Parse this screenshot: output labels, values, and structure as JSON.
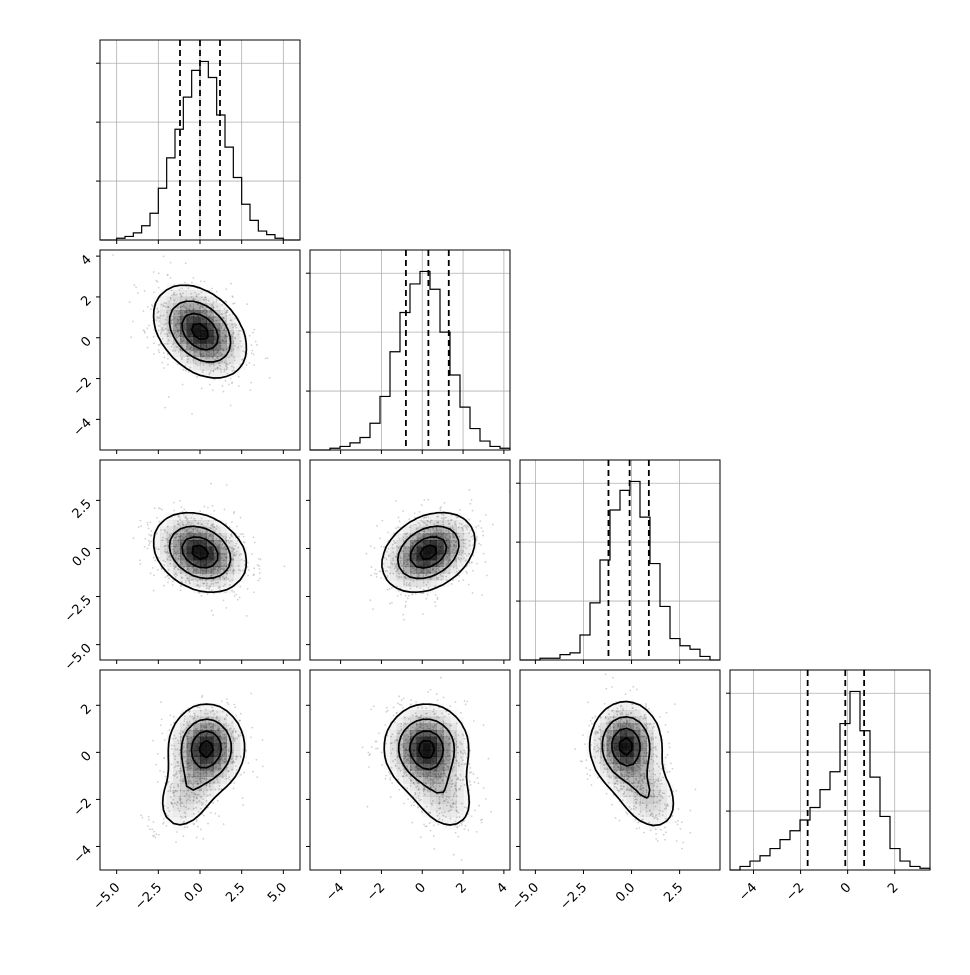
{
  "chart_data": {
    "type": "corner",
    "n_params": 4,
    "grid": true,
    "colors": {
      "line": "#000000",
      "grid": "#b0b0b0",
      "density": "#000000",
      "points": "#9a9a9a"
    },
    "params": [
      {
        "range": [
          -6,
          6
        ],
        "ticks": [
          -5.0,
          -2.5,
          0.0,
          2.5,
          5.0
        ],
        "tick_labels": [
          "−5.0",
          "−2.5",
          "0.0",
          "2.5",
          "5.0"
        ],
        "quantiles": [
          -1.2,
          0.0,
          1.2
        ],
        "hist": [
          0.0,
          0.0,
          0.01,
          0.02,
          0.04,
          0.08,
          0.15,
          0.29,
          0.46,
          0.62,
          0.8,
          0.95,
          1.0,
          0.91,
          0.7,
          0.52,
          0.35,
          0.2,
          0.11,
          0.05,
          0.03,
          0.01,
          0.0,
          0.0
        ]
      },
      {
        "range": [
          -5.5,
          4.3
        ],
        "ticks": [
          -4,
          -2,
          0,
          2,
          4
        ],
        "tick_labels": [
          "−4",
          "−2",
          "0",
          "2",
          "4"
        ],
        "quantiles": [
          -0.8,
          0.3,
          1.3
        ],
        "hist": [
          0.0,
          0.0,
          0.01,
          0.02,
          0.04,
          0.07,
          0.15,
          0.3,
          0.55,
          0.77,
          0.93,
          1.0,
          0.9,
          0.66,
          0.42,
          0.24,
          0.12,
          0.05,
          0.02,
          0.01
        ]
      },
      {
        "range": [
          -5.8,
          4.6
        ],
        "ticks": [
          -5.0,
          -2.5,
          0.0,
          2.5
        ],
        "tick_labels": [
          "−5.0",
          "−2.5",
          "0.0",
          "2.5"
        ],
        "quantiles": [
          -1.2,
          -0.1,
          0.9
        ],
        "hist": [
          0.0,
          0.0,
          0.01,
          0.01,
          0.03,
          0.04,
          0.14,
          0.32,
          0.56,
          0.84,
          0.95,
          1.0,
          0.8,
          0.54,
          0.3,
          0.12,
          0.08,
          0.06,
          0.02,
          0.0
        ]
      },
      {
        "range": [
          -5.0,
          3.5
        ],
        "ticks": [
          -4,
          -2,
          0,
          2
        ],
        "tick_labels": [
          "−4",
          "−2",
          "0",
          "2"
        ],
        "quantiles": [
          -1.7,
          -0.1,
          0.7
        ],
        "hist": [
          0.0,
          0.02,
          0.05,
          0.08,
          0.12,
          0.17,
          0.22,
          0.28,
          0.35,
          0.45,
          0.55,
          0.82,
          1.0,
          0.78,
          0.52,
          0.3,
          0.12,
          0.05,
          0.02,
          0.01
        ]
      }
    ],
    "y_ticks_2d": [
      null,
      {
        "ticks": [
          -4,
          -2,
          0,
          2,
          4
        ],
        "tick_labels": [
          "−4",
          "−2",
          "0",
          "2",
          "4"
        ]
      },
      {
        "ticks": [
          -5.0,
          -2.5,
          0.0,
          2.5
        ],
        "tick_labels": [
          "−5.0",
          "−2.5",
          "0.0",
          "2.5"
        ]
      },
      {
        "ticks": [
          -4,
          -2,
          0,
          2
        ],
        "tick_labels": [
          "−4",
          "−2",
          "0",
          "2"
        ]
      }
    ],
    "pairs": [
      {
        "row": 1,
        "col": 0,
        "blobs": [
          {
            "mx": 0.0,
            "my": 0.3,
            "sx": 1.35,
            "sy": 1.1,
            "rho": -0.35,
            "w": 1.0
          }
        ]
      },
      {
        "row": 2,
        "col": 0,
        "blobs": [
          {
            "mx": 0.0,
            "my": -0.2,
            "sx": 1.35,
            "sy": 1.0,
            "rho": -0.25,
            "w": 1.0
          }
        ]
      },
      {
        "row": 2,
        "col": 1,
        "blobs": [
          {
            "mx": 0.3,
            "my": -0.2,
            "sx": 1.1,
            "sy": 1.0,
            "rho": 0.3,
            "w": 1.0
          }
        ]
      },
      {
        "row": 3,
        "col": 0,
        "blobs": [
          {
            "mx": 0.4,
            "my": 0.2,
            "sx": 1.1,
            "sy": 0.9,
            "rho": 0.0,
            "w": 0.75
          },
          {
            "mx": -0.8,
            "my": -1.8,
            "sx": 1.0,
            "sy": 0.9,
            "rho": 0.3,
            "w": 0.25
          }
        ]
      },
      {
        "row": 3,
        "col": 1,
        "blobs": [
          {
            "mx": 0.2,
            "my": 0.2,
            "sx": 1.0,
            "sy": 0.9,
            "rho": 0.0,
            "w": 0.75
          },
          {
            "mx": 1.0,
            "my": -1.8,
            "sx": 0.9,
            "sy": 0.9,
            "rho": -0.3,
            "w": 0.25
          }
        ]
      },
      {
        "row": 3,
        "col": 2,
        "blobs": [
          {
            "mx": -0.3,
            "my": 0.3,
            "sx": 0.9,
            "sy": 0.9,
            "rho": 0.0,
            "w": 0.72
          },
          {
            "mx": 0.8,
            "my": -1.8,
            "sx": 0.9,
            "sy": 0.85,
            "rho": -0.3,
            "w": 0.28
          }
        ]
      }
    ]
  }
}
